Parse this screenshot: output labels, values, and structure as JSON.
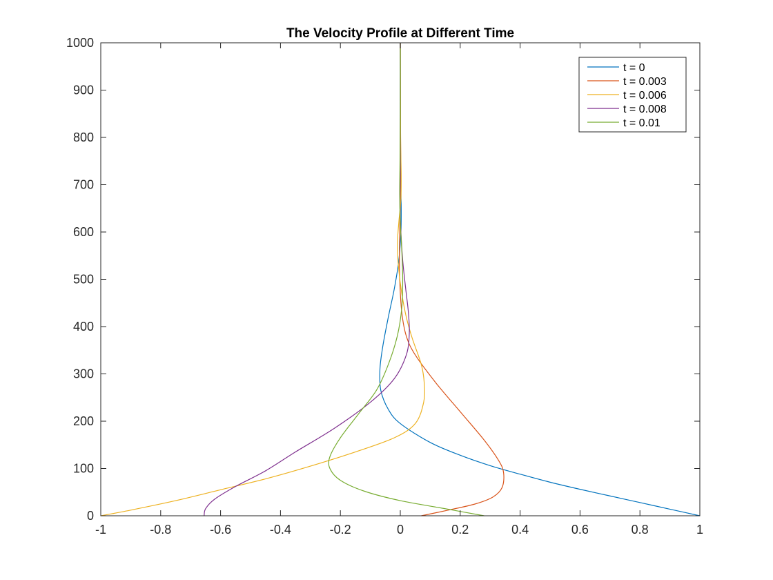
{
  "chart_data": {
    "type": "line",
    "title": "The Velocity Profile at Different Time",
    "xlabel": "",
    "ylabel": "",
    "xlim": [
      -1,
      1
    ],
    "ylim": [
      0,
      1000
    ],
    "x_ticks": [
      -1,
      -0.8,
      -0.6,
      -0.4,
      -0.2,
      0,
      0.2,
      0.4,
      0.6,
      0.8,
      1
    ],
    "x_tick_labels": [
      "-1",
      "-0.8",
      "-0.6",
      "-0.4",
      "-0.2",
      "0",
      "0.2",
      "0.4",
      "0.6",
      "0.8",
      "1"
    ],
    "y_ticks": [
      0,
      100,
      200,
      300,
      400,
      500,
      600,
      700,
      800,
      900,
      1000
    ],
    "y_tick_labels": [
      "0",
      "100",
      "200",
      "300",
      "400",
      "500",
      "600",
      "700",
      "800",
      "900",
      "1000"
    ],
    "grid": false,
    "box": true,
    "legend_position": "top-right",
    "series": [
      {
        "name": "t = 0",
        "color": "#0072BD",
        "points": [
          [
            1.0,
            0
          ],
          [
            0.9,
            14
          ],
          [
            0.8,
            28
          ],
          [
            0.7,
            42
          ],
          [
            0.6,
            56
          ],
          [
            0.5,
            71
          ],
          [
            0.4,
            88
          ],
          [
            0.3,
            106
          ],
          [
            0.2,
            128
          ],
          [
            0.1,
            155
          ],
          [
            0.0,
            195
          ],
          [
            -0.04,
            225
          ],
          [
            -0.065,
            265
          ],
          [
            -0.068,
            310
          ],
          [
            -0.058,
            360
          ],
          [
            -0.04,
            420
          ],
          [
            -0.02,
            480
          ],
          [
            -0.005,
            540
          ],
          [
            0.002,
            600
          ],
          [
            0.003,
            650
          ],
          [
            0.001,
            720
          ],
          [
            0.0,
            800
          ],
          [
            0.0,
            1000
          ]
        ]
      },
      {
        "name": "t = 0.003",
        "color": "#D95319",
        "points": [
          [
            0.07,
            0
          ],
          [
            0.16,
            12
          ],
          [
            0.25,
            25
          ],
          [
            0.31,
            40
          ],
          [
            0.34,
            60
          ],
          [
            0.345,
            90
          ],
          [
            0.33,
            115
          ],
          [
            0.28,
            160
          ],
          [
            0.2,
            220
          ],
          [
            0.12,
            280
          ],
          [
            0.05,
            340
          ],
          [
            0.02,
            380
          ],
          [
            0.005,
            430
          ],
          [
            -0.002,
            500
          ],
          [
            -0.003,
            560
          ],
          [
            -0.001,
            630
          ],
          [
            0.002,
            700
          ],
          [
            0.001,
            800
          ],
          [
            0.0,
            1000
          ]
        ]
      },
      {
        "name": "t = 0.006",
        "color": "#EDB120",
        "points": [
          [
            -1.0,
            0
          ],
          [
            -0.9,
            12
          ],
          [
            -0.75,
            32
          ],
          [
            -0.6,
            55
          ],
          [
            -0.45,
            78
          ],
          [
            -0.3,
            105
          ],
          [
            -0.15,
            135
          ],
          [
            -0.02,
            165
          ],
          [
            0.05,
            195
          ],
          [
            0.078,
            240
          ],
          [
            0.08,
            280
          ],
          [
            0.07,
            320
          ],
          [
            0.04,
            375
          ],
          [
            0.02,
            420
          ],
          [
            0.005,
            470
          ],
          [
            -0.005,
            520
          ],
          [
            -0.01,
            570
          ],
          [
            -0.005,
            620
          ],
          [
            0.002,
            670
          ],
          [
            0.003,
            720
          ],
          [
            0.001,
            800
          ],
          [
            0.0,
            1000
          ]
        ]
      },
      {
        "name": "t = 0.008",
        "color": "#7E2F8E",
        "points": [
          [
            -0.655,
            0
          ],
          [
            -0.65,
            15
          ],
          [
            -0.62,
            35
          ],
          [
            -0.55,
            62
          ],
          [
            -0.45,
            95
          ],
          [
            -0.35,
            135
          ],
          [
            -0.22,
            185
          ],
          [
            -0.1,
            240
          ],
          [
            -0.02,
            290
          ],
          [
            0.02,
            340
          ],
          [
            0.03,
            385
          ],
          [
            0.027,
            430
          ],
          [
            0.018,
            480
          ],
          [
            0.008,
            540
          ],
          [
            0.002,
            600
          ],
          [
            -0.001,
            650
          ],
          [
            0.0,
            720
          ],
          [
            0.0,
            800
          ],
          [
            0.0,
            1000
          ]
        ]
      },
      {
        "name": "t = 0.01",
        "color": "#77AC30",
        "points": [
          [
            0.28,
            0
          ],
          [
            0.15,
            15
          ],
          [
            0.0,
            32
          ],
          [
            -0.12,
            52
          ],
          [
            -0.2,
            75
          ],
          [
            -0.235,
            100
          ],
          [
            -0.235,
            125
          ],
          [
            -0.2,
            165
          ],
          [
            -0.14,
            215
          ],
          [
            -0.08,
            265
          ],
          [
            -0.04,
            320
          ],
          [
            -0.01,
            380
          ],
          [
            0.005,
            440
          ],
          [
            0.008,
            500
          ],
          [
            0.005,
            560
          ],
          [
            0.0,
            620
          ],
          [
            -0.002,
            680
          ],
          [
            -0.001,
            750
          ],
          [
            0.0,
            850
          ],
          [
            0.0,
            1000
          ]
        ]
      }
    ]
  }
}
